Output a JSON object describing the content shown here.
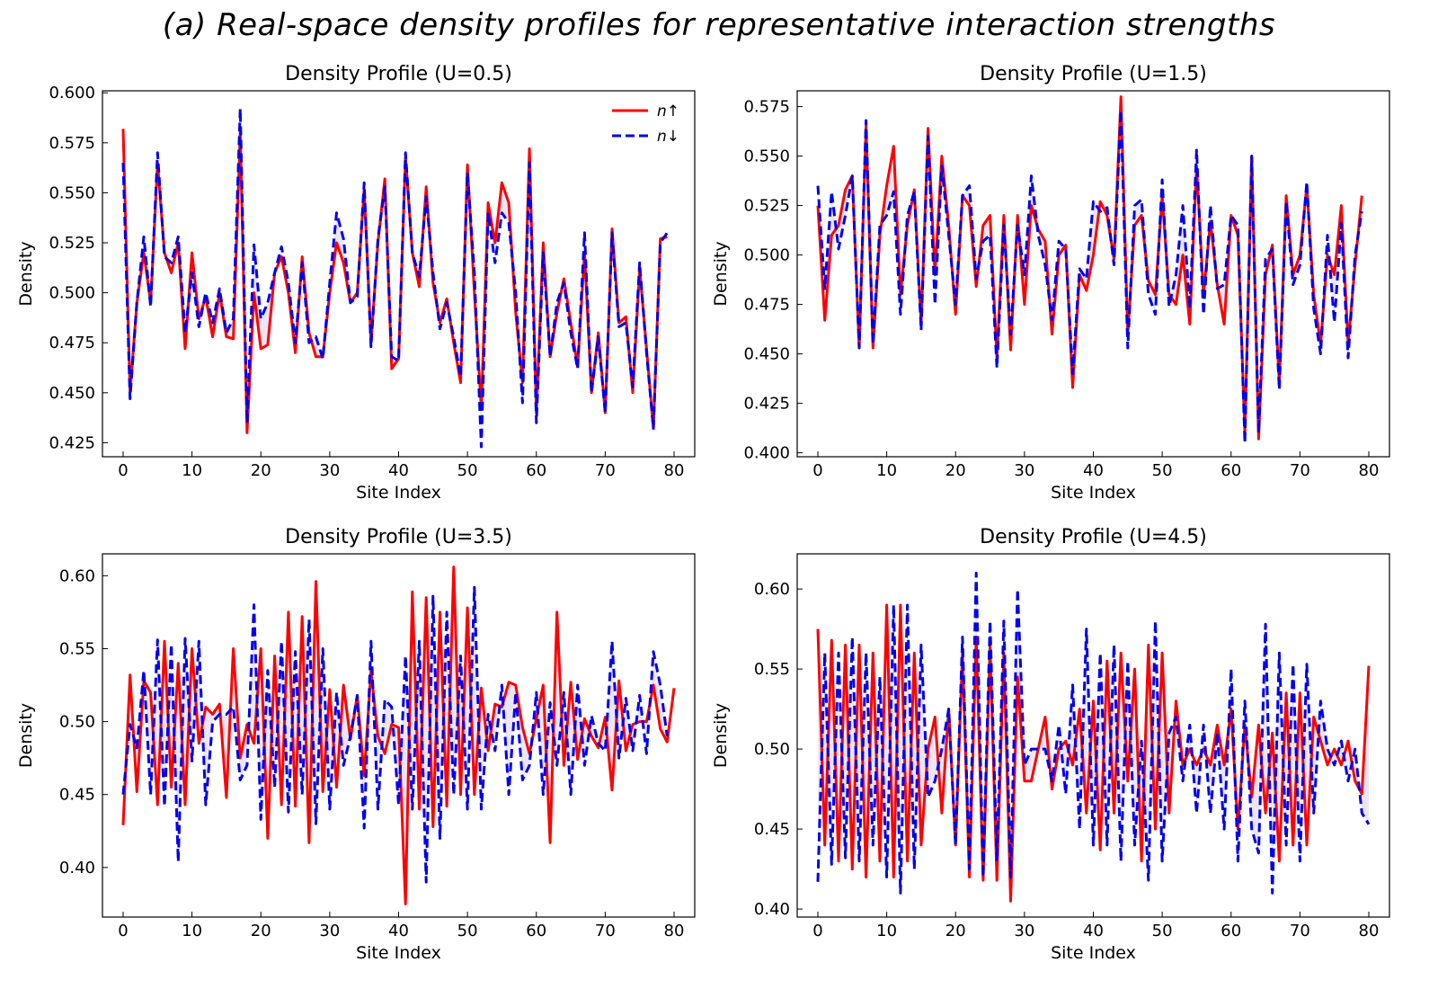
{
  "figure": {
    "suptitle": "(a) Real-space density profiles for representative interaction strengths"
  },
  "legend": {
    "up_label": "n↑",
    "down_label": "n↓",
    "placement": "top-right"
  },
  "colors": {
    "up": "#ff0000",
    "down": "#0000ee",
    "fill": "#c8b8e0"
  },
  "chart_data": [
    {
      "type": "line",
      "title": "Density Profile (U=0.5)",
      "xlabel": "Site Index",
      "ylabel": "Density",
      "xlim": [
        -3,
        83
      ],
      "ylim": [
        0.418,
        0.601
      ],
      "xticks": [
        0,
        10,
        20,
        30,
        40,
        50,
        60,
        70,
        80
      ],
      "yticks": [
        0.425,
        0.45,
        0.475,
        0.5,
        0.525,
        0.55,
        0.575,
        0.6
      ],
      "ytick_labels": [
        "0.425",
        "0.450",
        "0.475",
        "0.500",
        "0.525",
        "0.550",
        "0.575",
        "0.600"
      ],
      "legend": true,
      "series": [
        {
          "name": "n_up",
          "style": "solid",
          "values": [
            0.582,
            0.45,
            0.495,
            0.52,
            0.495,
            0.565,
            0.52,
            0.51,
            0.525,
            0.472,
            0.52,
            0.487,
            0.498,
            0.478,
            0.5,
            0.478,
            0.477,
            0.58,
            0.43,
            0.5,
            0.472,
            0.474,
            0.51,
            0.518,
            0.5,
            0.47,
            0.518,
            0.48,
            0.468,
            0.468,
            0.5,
            0.525,
            0.515,
            0.495,
            0.5,
            0.552,
            0.475,
            0.525,
            0.557,
            0.462,
            0.467,
            0.568,
            0.52,
            0.503,
            0.553,
            0.505,
            0.485,
            0.497,
            0.475,
            0.455,
            0.564,
            0.5,
            0.442,
            0.545,
            0.525,
            0.555,
            0.545,
            0.49,
            0.455,
            0.572,
            0.44,
            0.525,
            0.468,
            0.49,
            0.507,
            0.485,
            0.463,
            0.52,
            0.45,
            0.48,
            0.44,
            0.532,
            0.485,
            0.488,
            0.45,
            0.512,
            0.472,
            0.432,
            0.527,
            0.528
          ]
        },
        {
          "name": "n_down",
          "style": "dashed",
          "values": [
            0.565,
            0.447,
            0.495,
            0.528,
            0.493,
            0.57,
            0.518,
            0.515,
            0.528,
            0.48,
            0.51,
            0.483,
            0.5,
            0.485,
            0.502,
            0.48,
            0.487,
            0.592,
            0.435,
            0.524,
            0.487,
            0.495,
            0.51,
            0.523,
            0.505,
            0.475,
            0.515,
            0.475,
            0.478,
            0.467,
            0.505,
            0.54,
            0.527,
            0.495,
            0.498,
            0.555,
            0.473,
            0.527,
            0.553,
            0.468,
            0.466,
            0.57,
            0.52,
            0.508,
            0.548,
            0.51,
            0.482,
            0.495,
            0.478,
            0.458,
            0.56,
            0.51,
            0.423,
            0.54,
            0.515,
            0.54,
            0.535,
            0.5,
            0.445,
            0.565,
            0.435,
            0.52,
            0.468,
            0.495,
            0.505,
            0.48,
            0.462,
            0.53,
            0.45,
            0.478,
            0.44,
            0.53,
            0.483,
            0.485,
            0.453,
            0.515,
            0.47,
            0.432,
            0.525,
            0.53
          ]
        }
      ]
    },
    {
      "type": "line",
      "title": "Density Profile (U=1.5)",
      "xlabel": "Site Index",
      "ylabel": "Density",
      "xlim": [
        -3,
        83
      ],
      "ylim": [
        0.398,
        0.583
      ],
      "xticks": [
        0,
        10,
        20,
        30,
        40,
        50,
        60,
        70,
        80
      ],
      "yticks": [
        0.4,
        0.425,
        0.45,
        0.475,
        0.5,
        0.525,
        0.55,
        0.575
      ],
      "ytick_labels": [
        "0.400",
        "0.425",
        "0.450",
        "0.475",
        "0.500",
        "0.525",
        "0.550",
        "0.575"
      ],
      "legend": false,
      "series": [
        {
          "name": "n_up",
          "style": "solid",
          "values": [
            0.525,
            0.467,
            0.51,
            0.515,
            0.533,
            0.54,
            0.453,
            0.565,
            0.453,
            0.51,
            0.535,
            0.555,
            0.48,
            0.515,
            0.533,
            0.465,
            0.564,
            0.49,
            0.55,
            0.515,
            0.47,
            0.53,
            0.525,
            0.484,
            0.515,
            0.52,
            0.448,
            0.52,
            0.452,
            0.52,
            0.475,
            0.525,
            0.513,
            0.507,
            0.46,
            0.5,
            0.505,
            0.433,
            0.49,
            0.482,
            0.5,
            0.527,
            0.52,
            0.498,
            0.58,
            0.46,
            0.515,
            0.52,
            0.487,
            0.48,
            0.53,
            0.48,
            0.475,
            0.5,
            0.465,
            0.545,
            0.48,
            0.517,
            0.485,
            0.465,
            0.52,
            0.51,
            0.41,
            0.55,
            0.407,
            0.49,
            0.505,
            0.435,
            0.53,
            0.49,
            0.5,
            0.535,
            0.48,
            0.455,
            0.5,
            0.49,
            0.525,
            0.455,
            0.495,
            0.53
          ]
        },
        {
          "name": "n_down",
          "style": "dashed",
          "values": [
            0.535,
            0.483,
            0.532,
            0.503,
            0.52,
            0.54,
            0.453,
            0.568,
            0.455,
            0.515,
            0.52,
            0.532,
            0.47,
            0.52,
            0.532,
            0.462,
            0.56,
            0.475,
            0.545,
            0.51,
            0.475,
            0.53,
            0.535,
            0.488,
            0.507,
            0.51,
            0.443,
            0.515,
            0.46,
            0.515,
            0.49,
            0.54,
            0.51,
            0.495,
            0.467,
            0.507,
            0.503,
            0.44,
            0.493,
            0.488,
            0.527,
            0.522,
            0.524,
            0.495,
            0.573,
            0.453,
            0.525,
            0.528,
            0.48,
            0.47,
            0.538,
            0.474,
            0.49,
            0.525,
            0.473,
            0.553,
            0.47,
            0.525,
            0.483,
            0.485,
            0.52,
            0.515,
            0.405,
            0.55,
            0.41,
            0.498,
            0.503,
            0.432,
            0.527,
            0.485,
            0.495,
            0.537,
            0.473,
            0.45,
            0.51,
            0.466,
            0.516,
            0.448,
            0.5,
            0.522
          ]
        }
      ]
    },
    {
      "type": "line",
      "title": "Density Profile (U=3.5)",
      "xlabel": "Site Index",
      "ylabel": "Density",
      "xlim": [
        -3,
        83
      ],
      "ylim": [
        0.366,
        0.615
      ],
      "xticks": [
        0,
        10,
        20,
        30,
        40,
        50,
        60,
        70,
        80
      ],
      "yticks": [
        0.4,
        0.45,
        0.5,
        0.55,
        0.6
      ],
      "ytick_labels": [
        "0.40",
        "0.45",
        "0.50",
        "0.55",
        "0.60"
      ],
      "legend": false,
      "series": [
        {
          "name": "n_up",
          "style": "solid",
          "values": [
            0.429,
            0.532,
            0.452,
            0.528,
            0.52,
            0.443,
            0.555,
            0.455,
            0.54,
            0.443,
            0.55,
            0.485,
            0.51,
            0.505,
            0.512,
            0.448,
            0.55,
            0.475,
            0.498,
            0.485,
            0.55,
            0.42,
            0.545,
            0.443,
            0.575,
            0.442,
            0.572,
            0.417,
            0.596,
            0.452,
            0.522,
            0.455,
            0.525,
            0.488,
            0.518,
            0.463,
            0.535,
            0.49,
            0.478,
            0.498,
            0.496,
            0.375,
            0.589,
            0.44,
            0.585,
            0.428,
            0.575,
            0.442,
            0.606,
            0.45,
            0.578,
            0.45,
            0.523,
            0.48,
            0.512,
            0.51,
            0.527,
            0.525,
            0.496,
            0.478,
            0.502,
            0.525,
            0.417,
            0.575,
            0.47,
            0.527,
            0.474,
            0.502,
            0.49,
            0.482,
            0.503,
            0.453,
            0.528,
            0.48,
            0.498,
            0.5,
            0.5,
            0.525,
            0.495,
            0.486,
            0.523
          ]
        },
        {
          "name": "n_down",
          "style": "dashed",
          "values": [
            0.45,
            0.498,
            0.482,
            0.535,
            0.45,
            0.556,
            0.442,
            0.553,
            0.404,
            0.557,
            0.473,
            0.555,
            0.443,
            0.5,
            0.505,
            0.505,
            0.51,
            0.46,
            0.47,
            0.58,
            0.433,
            0.535,
            0.455,
            0.555,
            0.438,
            0.548,
            0.45,
            0.57,
            0.43,
            0.55,
            0.44,
            0.52,
            0.47,
            0.49,
            0.518,
            0.427,
            0.555,
            0.44,
            0.515,
            0.51,
            0.443,
            0.545,
            0.44,
            0.555,
            0.39,
            0.586,
            0.42,
            0.575,
            0.45,
            0.545,
            0.44,
            0.592,
            0.44,
            0.505,
            0.48,
            0.525,
            0.45,
            0.52,
            0.46,
            0.47,
            0.52,
            0.45,
            0.513,
            0.47,
            0.52,
            0.45,
            0.525,
            0.47,
            0.504,
            0.485,
            0.48,
            0.555,
            0.475,
            0.516,
            0.48,
            0.518,
            0.478,
            0.548,
            0.525,
            0.49
          ]
        }
      ]
    },
    {
      "type": "line",
      "title": "Density Profile (U=4.5)",
      "xlabel": "Site Index",
      "ylabel": "Density",
      "xlim": [
        -3,
        83
      ],
      "ylim": [
        0.395,
        0.622
      ],
      "xticks": [
        0,
        10,
        20,
        30,
        40,
        50,
        60,
        70,
        80
      ],
      "yticks": [
        0.4,
        0.45,
        0.5,
        0.55,
        0.6
      ],
      "ytick_labels": [
        "0.40",
        "0.45",
        "0.50",
        "0.55",
        "0.60"
      ],
      "legend": false,
      "series": [
        {
          "name": "n_up",
          "style": "solid",
          "values": [
            0.575,
            0.44,
            0.568,
            0.43,
            0.565,
            0.425,
            0.565,
            0.42,
            0.56,
            0.43,
            0.59,
            0.42,
            0.59,
            0.43,
            0.56,
            0.44,
            0.5,
            0.52,
            0.46,
            0.525,
            0.44,
            0.56,
            0.42,
            0.57,
            0.418,
            0.565,
            0.418,
            0.56,
            0.405,
            0.545,
            0.48,
            0.48,
            0.5,
            0.52,
            0.475,
            0.5,
            0.505,
            0.49,
            0.525,
            0.46,
            0.53,
            0.437,
            0.555,
            0.46,
            0.56,
            0.48,
            0.55,
            0.43,
            0.565,
            0.45,
            0.56,
            0.46,
            0.53,
            0.49,
            0.5,
            0.49,
            0.5,
            0.49,
            0.515,
            0.49,
            0.525,
            0.45,
            0.515,
            0.47,
            0.515,
            0.46,
            0.51,
            0.43,
            0.535,
            0.44,
            0.535,
            0.44,
            0.52,
            0.505,
            0.49,
            0.5,
            0.49,
            0.505,
            0.48,
            0.472,
            0.552
          ]
        },
        {
          "name": "n_down",
          "style": "dashed",
          "values": [
            0.417,
            0.56,
            0.428,
            0.56,
            0.432,
            0.57,
            0.43,
            0.56,
            0.44,
            0.545,
            0.42,
            0.59,
            0.41,
            0.59,
            0.425,
            0.565,
            0.47,
            0.48,
            0.5,
            0.525,
            0.44,
            0.57,
            0.425,
            0.61,
            0.42,
            0.58,
            0.43,
            0.58,
            0.42,
            0.6,
            0.49,
            0.5,
            0.5,
            0.5,
            0.48,
            0.515,
            0.472,
            0.54,
            0.45,
            0.575,
            0.44,
            0.56,
            0.44,
            0.565,
            0.43,
            0.555,
            0.44,
            0.505,
            0.418,
            0.58,
            0.43,
            0.51,
            0.52,
            0.48,
            0.515,
            0.46,
            0.515,
            0.46,
            0.51,
            0.45,
            0.55,
            0.43,
            0.53,
            0.45,
            0.435,
            0.578,
            0.41,
            0.56,
            0.44,
            0.553,
            0.43,
            0.553,
            0.46,
            0.53,
            0.5,
            0.49,
            0.505,
            0.48,
            0.5,
            0.46,
            0.453
          ]
        }
      ]
    }
  ]
}
